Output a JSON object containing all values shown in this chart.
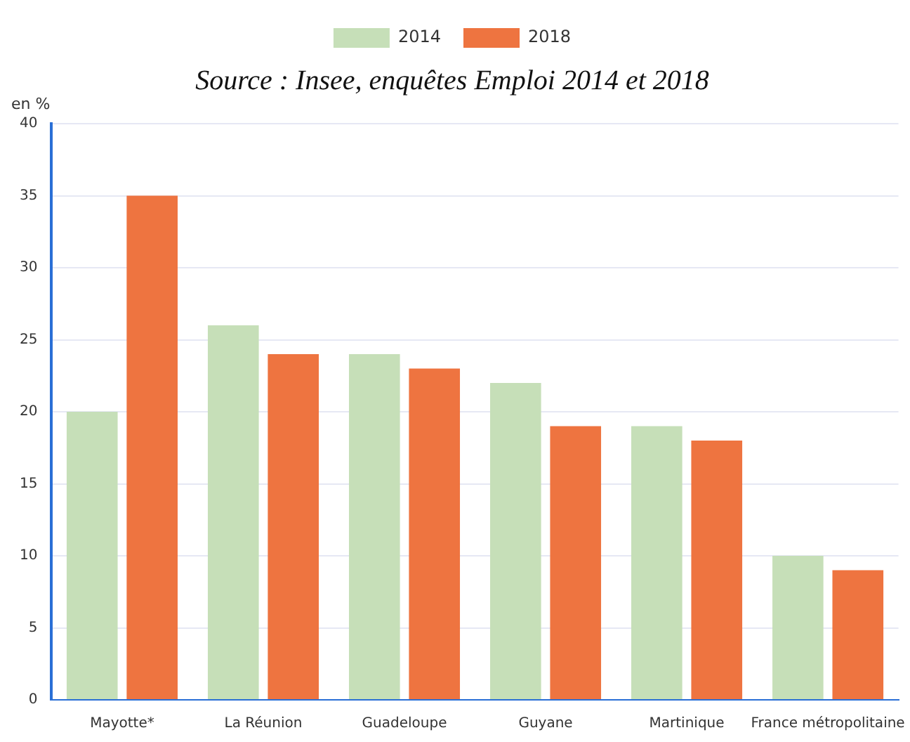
{
  "chart_data": {
    "type": "bar",
    "title": "Source : Insee, enquêtes Emploi 2014 et 2018",
    "ylabel": "en %",
    "categories": [
      "Mayotte*",
      "La Réunion",
      "Guadeloupe",
      "Guyane",
      "Martinique",
      "France métropolitaine"
    ],
    "series": [
      {
        "name": "2014",
        "color": "#c6dfb8",
        "values": [
          20,
          26,
          24,
          22,
          19,
          10
        ]
      },
      {
        "name": "2018",
        "color": "#ee7440",
        "values": [
          35,
          24,
          23,
          19,
          18,
          9
        ]
      }
    ],
    "ylim": [
      0,
      40
    ],
    "yticks": [
      0,
      5,
      10,
      15,
      20,
      25,
      30,
      35,
      40
    ],
    "grid": "y",
    "legend": "top"
  }
}
